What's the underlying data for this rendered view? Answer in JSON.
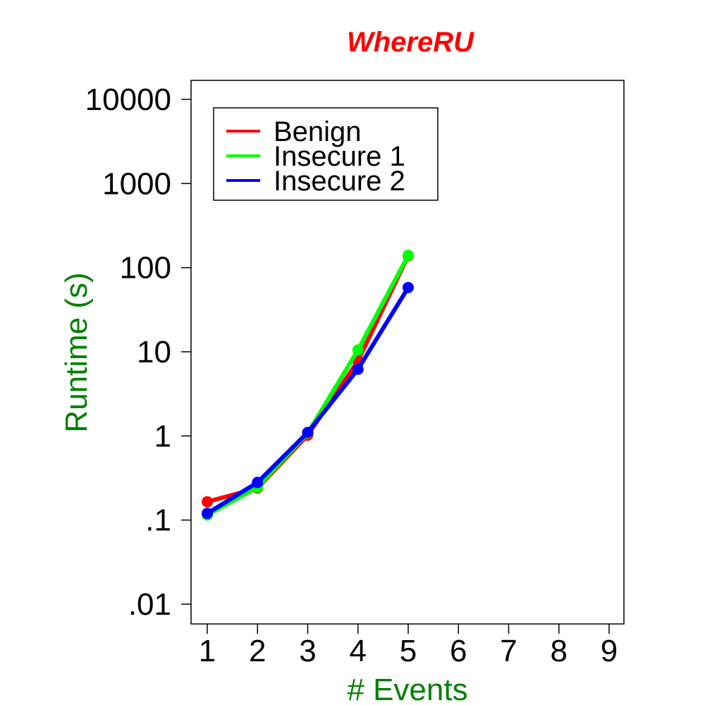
{
  "chart_data": {
    "type": "line",
    "title": "WhereRU",
    "title_color": "#ff0000",
    "xlabel": "# Events",
    "ylabel": "Runtime (s)",
    "label_color": "#008000",
    "x": [
      1,
      2,
      3,
      4,
      5
    ],
    "xlim": [
      1,
      9
    ],
    "xticks": [
      1,
      2,
      3,
      4,
      5,
      6,
      7,
      8,
      9
    ],
    "ylim": [
      0.01,
      10000
    ],
    "ylog": true,
    "yticks": [
      0.01,
      0.1,
      1,
      10,
      100,
      1000,
      10000
    ],
    "ytick_labels": [
      ".01",
      ".1",
      "1",
      "10",
      "100",
      "1000",
      "10000"
    ],
    "grid": false,
    "legend_position": "top-left",
    "series": [
      {
        "name": "Benign",
        "color": "#ff0000",
        "values": [
          0.165,
          0.24,
          1.02,
          7.8,
          138
        ]
      },
      {
        "name": "Insecure 1",
        "color": "#00ff00",
        "values": [
          0.115,
          0.245,
          1.08,
          10.5,
          140
        ]
      },
      {
        "name": "Insecure 2",
        "color": "#0000ff",
        "values": [
          0.12,
          0.28,
          1.1,
          6.2,
          58
        ]
      }
    ]
  }
}
